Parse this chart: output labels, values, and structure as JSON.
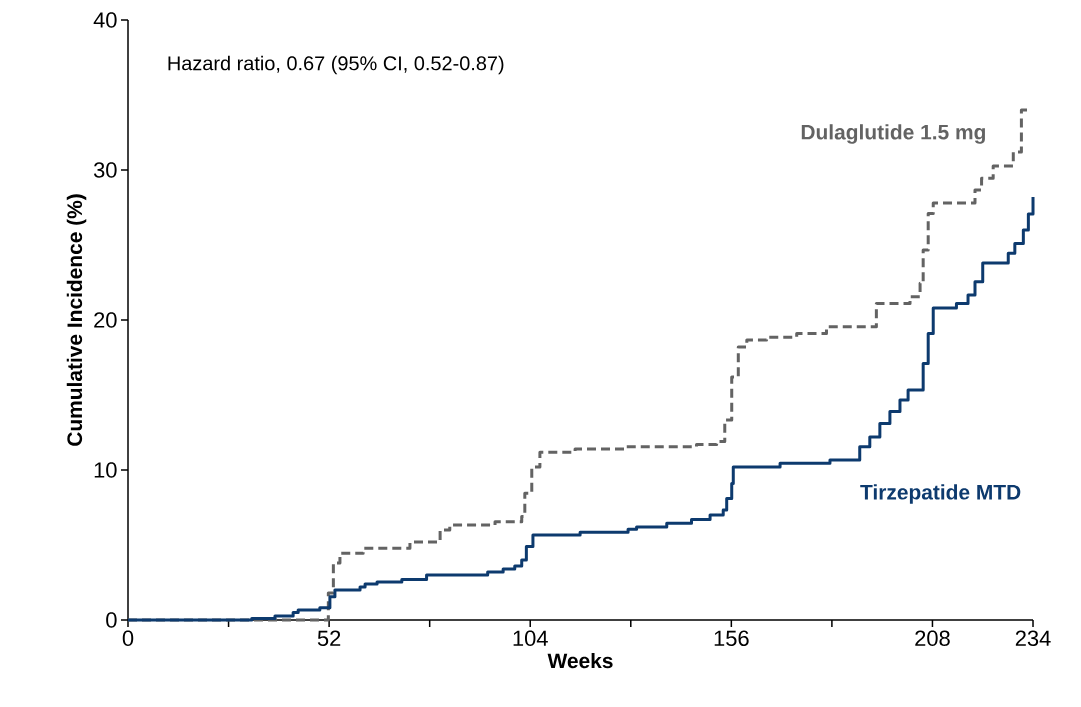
{
  "chart_data": {
    "type": "step",
    "xlabel": "Weeks",
    "ylabel": "Cumulative Incidence (%)",
    "annotations": [
      "Hazard ratio, 0.67 (95% CI, 0.52-0.87)"
    ],
    "xlim": [
      0,
      234
    ],
    "ylim": [
      0,
      40
    ],
    "xticks": [
      0,
      {
        "value": 26,
        "label": null
      },
      52,
      {
        "value": 78,
        "label": null
      },
      104,
      {
        "value": 130,
        "label": null
      },
      156,
      {
        "value": 182,
        "label": null
      },
      208,
      234
    ],
    "yticks": [
      0,
      10,
      20,
      30,
      40
    ],
    "grid": false,
    "legend": false,
    "series": [
      {
        "name": "Dulaglutide 1.5 mg",
        "color": "#636363",
        "line_style": "dashed",
        "x": [
          0,
          49.6,
          51.8,
          53.1,
          54.8,
          60.8,
          72.9,
          80.7,
          83.2,
          94.9,
          101.8,
          102.6,
          104.4,
          106.5,
          115.6,
          128.9,
          147,
          152.2,
          154.3,
          156.1,
          157.8,
          160,
          165.1,
          172.9,
          180.6,
          193.5,
          202.2,
          204.8,
          205.6,
          206.9,
          208.2,
          219,
          220.7,
          223.7,
          228.9,
          231,
          233.2
        ],
        "values": [
          0,
          0,
          1.8,
          3.8,
          4.45,
          4.78,
          5.2,
          6.0,
          6.33,
          6.55,
          6.9,
          8.45,
          10.2,
          11.18,
          11.4,
          11.55,
          11.7,
          11.9,
          13.33,
          16.2,
          18.2,
          18.67,
          18.85,
          19.1,
          19.55,
          21.1,
          21.55,
          22.45,
          24.67,
          27.1,
          27.8,
          28.67,
          29.45,
          30.27,
          31.2,
          34.0,
          34.0
        ]
      },
      {
        "name": "Tirzepatide MTD",
        "color": "#0d3a6e",
        "line_style": "solid",
        "x": [
          0,
          32,
          38,
          42.7,
          44,
          49.6,
          52.2,
          53.5,
          60,
          61.3,
          64.4,
          70.8,
          77.2,
          93,
          97,
          100,
          101.8,
          103,
          104.7,
          116.9,
          129.3,
          131.5,
          139.3,
          145.7,
          150.5,
          153.9,
          154.8,
          156.1,
          156.5,
          168.6,
          181.5,
          189.2,
          191.8,
          194.4,
          197,
          199.6,
          201.7,
          205.6,
          206.9,
          208.2,
          214.2,
          217.2,
          219,
          221,
          227.6,
          229.3,
          231.5,
          232.8,
          234
        ],
        "values": [
          0,
          0.1,
          0.27,
          0.5,
          0.67,
          0.82,
          1.55,
          2.0,
          2.2,
          2.4,
          2.53,
          2.7,
          3.0,
          3.2,
          3.4,
          3.6,
          4.0,
          4.9,
          5.67,
          5.85,
          6.05,
          6.2,
          6.45,
          6.7,
          7.0,
          7.33,
          8.1,
          9.1,
          10.2,
          10.45,
          10.67,
          11.55,
          12.2,
          13.1,
          13.9,
          14.67,
          15.33,
          17.1,
          19.1,
          20.8,
          21.1,
          21.67,
          22.55,
          23.8,
          24.45,
          25.1,
          26.0,
          27.07,
          28.2
        ]
      }
    ]
  }
}
